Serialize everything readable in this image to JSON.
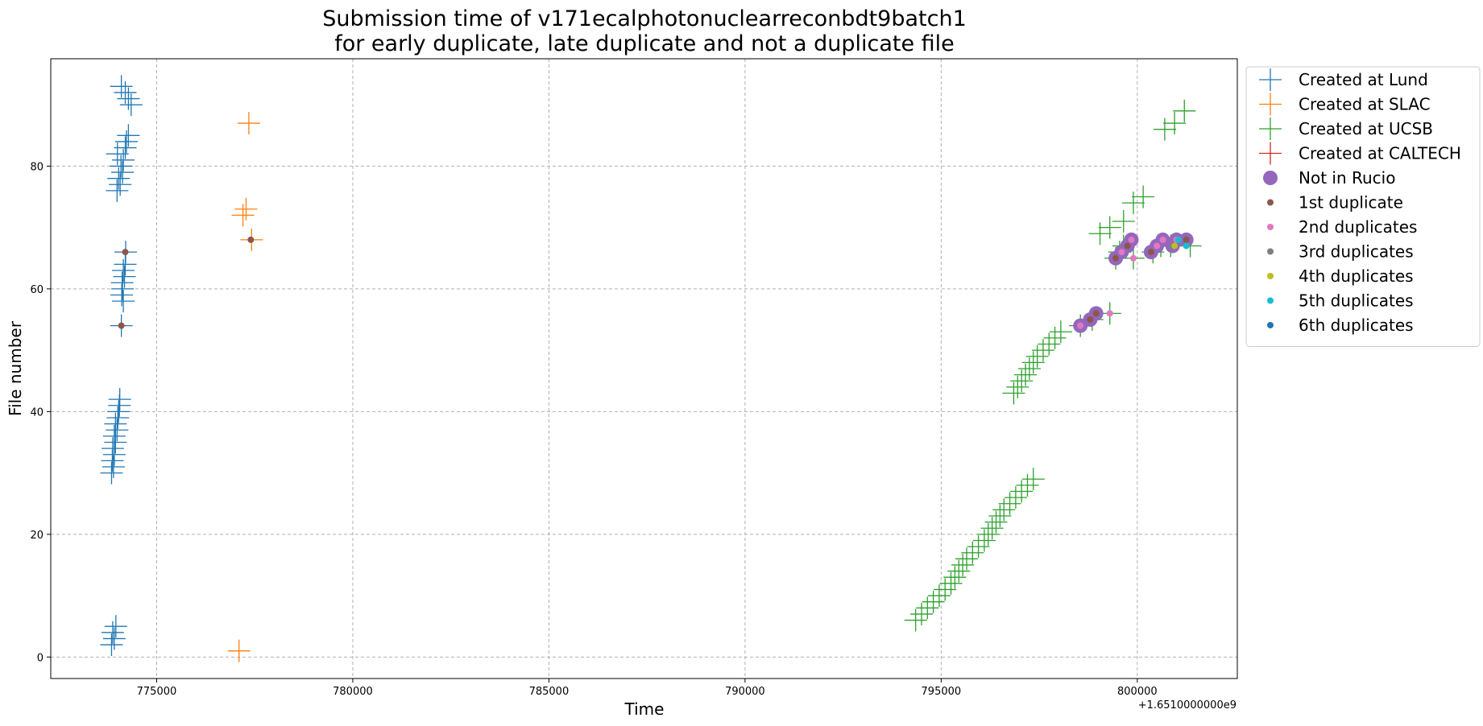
{
  "chart_data": {
    "type": "scatter",
    "title": [
      "Submission time of v171ecalphotonuclearreconbdt9batch1",
      "for early duplicate, late duplicate and not a duplicate file"
    ],
    "xlabel": "Time",
    "ylabel": "File number",
    "x_offset_label": "+1.6510000000e9",
    "xlim": [
      772300,
      802550
    ],
    "ylim": [
      -3.5,
      97.5
    ],
    "x_ticks": [
      775000,
      780000,
      785000,
      790000,
      795000,
      800000
    ],
    "y_ticks": [
      0,
      20,
      40,
      60,
      80
    ],
    "grid": true,
    "legend_position": "outside-top-right",
    "series": [
      {
        "name": "Created at Lund",
        "marker": "plus",
        "color": "#1f77b4",
        "points": [
          [
            773850,
            2
          ],
          [
            773920,
            3
          ],
          [
            773880,
            4
          ],
          [
            773960,
            5
          ],
          [
            773850,
            30
          ],
          [
            773900,
            31
          ],
          [
            773870,
            32
          ],
          [
            773920,
            33
          ],
          [
            773880,
            34
          ],
          [
            773950,
            35
          ],
          [
            773920,
            36
          ],
          [
            773990,
            37
          ],
          [
            773950,
            38
          ],
          [
            774010,
            39
          ],
          [
            774030,
            40
          ],
          [
            774050,
            41
          ],
          [
            774060,
            42
          ],
          [
            774100,
            54
          ],
          [
            774150,
            58
          ],
          [
            774110,
            59
          ],
          [
            774130,
            60
          ],
          [
            774120,
            61
          ],
          [
            774180,
            62
          ],
          [
            774150,
            63
          ],
          [
            774200,
            64
          ],
          [
            774210,
            66
          ],
          [
            773990,
            76
          ],
          [
            774070,
            77
          ],
          [
            774030,
            78
          ],
          [
            774130,
            79
          ],
          [
            774090,
            80
          ],
          [
            774150,
            81
          ],
          [
            774000,
            82
          ],
          [
            774200,
            83
          ],
          [
            774230,
            84
          ],
          [
            774280,
            85
          ],
          [
            774350,
            90
          ],
          [
            774280,
            91
          ],
          [
            774200,
            92
          ],
          [
            774100,
            93
          ]
        ]
      },
      {
        "name": "Created at SLAC",
        "marker": "plus",
        "color": "#ff7f0e",
        "points": [
          [
            777100,
            1
          ],
          [
            777420,
            68
          ],
          [
            777200,
            72
          ],
          [
            777280,
            73
          ],
          [
            777350,
            87
          ]
        ]
      },
      {
        "name": "Created at UCSB",
        "marker": "plus",
        "color": "#2ca02c",
        "points": [
          [
            794350,
            6
          ],
          [
            794500,
            7
          ],
          [
            794650,
            8
          ],
          [
            794800,
            9
          ],
          [
            794950,
            10
          ],
          [
            795100,
            11
          ],
          [
            795250,
            12
          ],
          [
            795350,
            13
          ],
          [
            795450,
            14
          ],
          [
            795550,
            15
          ],
          [
            795650,
            16
          ],
          [
            795800,
            17
          ],
          [
            795950,
            18
          ],
          [
            796100,
            19
          ],
          [
            796200,
            20
          ],
          [
            796300,
            21
          ],
          [
            796400,
            22
          ],
          [
            796500,
            23
          ],
          [
            796600,
            24
          ],
          [
            796750,
            25
          ],
          [
            796900,
            26
          ],
          [
            797050,
            27
          ],
          [
            797200,
            28
          ],
          [
            797350,
            29
          ],
          [
            796850,
            43
          ],
          [
            796950,
            44
          ],
          [
            797050,
            45
          ],
          [
            797150,
            46
          ],
          [
            797250,
            47
          ],
          [
            797350,
            48
          ],
          [
            797450,
            49
          ],
          [
            797600,
            50
          ],
          [
            797750,
            51
          ],
          [
            797900,
            52
          ],
          [
            798050,
            53
          ],
          [
            798550,
            54
          ],
          [
            798850,
            55
          ],
          [
            799300,
            56
          ],
          [
            799450,
            65
          ],
          [
            799550,
            66
          ],
          [
            799650,
            67
          ],
          [
            799900,
            65
          ],
          [
            800400,
            66
          ],
          [
            800600,
            67
          ],
          [
            800850,
            67
          ],
          [
            801350,
            67
          ],
          [
            799050,
            69
          ],
          [
            799300,
            70
          ],
          [
            799650,
            71
          ],
          [
            799900,
            74
          ],
          [
            800150,
            75
          ],
          [
            800700,
            86
          ],
          [
            800950,
            87
          ],
          [
            801200,
            89
          ]
        ]
      },
      {
        "name": "Created at CALTECH",
        "marker": "plus",
        "color": "#d62728",
        "points": []
      },
      {
        "name": "Not in Rucio",
        "marker": "circle-large",
        "color": "#9467bd",
        "points": [
          [
            798550,
            54
          ],
          [
            798800,
            55
          ],
          [
            798950,
            56
          ],
          [
            799450,
            65
          ],
          [
            799600,
            66
          ],
          [
            799750,
            67
          ],
          [
            799850,
            68
          ],
          [
            800350,
            66
          ],
          [
            800500,
            67
          ],
          [
            800650,
            68
          ],
          [
            800900,
            67
          ],
          [
            801000,
            68
          ],
          [
            801250,
            68
          ]
        ]
      },
      {
        "name": "1st duplicate",
        "marker": "dot",
        "color": "#8c564b",
        "points": [
          [
            774100,
            54
          ],
          [
            774200,
            66
          ],
          [
            777400,
            68
          ],
          [
            798800,
            55
          ],
          [
            798950,
            56
          ],
          [
            799450,
            65
          ],
          [
            799750,
            67
          ],
          [
            800350,
            66
          ],
          [
            801250,
            68
          ]
        ]
      },
      {
        "name": "2nd duplicates",
        "marker": "dot",
        "color": "#e377c2",
        "points": [
          [
            798550,
            54
          ],
          [
            799300,
            56
          ],
          [
            799600,
            66
          ],
          [
            799900,
            65
          ],
          [
            799850,
            68
          ],
          [
            800500,
            67
          ],
          [
            800650,
            68
          ],
          [
            801000,
            68
          ]
        ]
      },
      {
        "name": "3rd duplicates",
        "marker": "dot",
        "color": "#7f7f7f",
        "points": [
          [
            800900,
            67
          ]
        ]
      },
      {
        "name": "4th duplicates",
        "marker": "dot",
        "color": "#bcbd22",
        "points": [
          [
            800950,
            67
          ]
        ]
      },
      {
        "name": "5th duplicates",
        "marker": "dot",
        "color": "#17becf",
        "points": [
          [
            801050,
            68
          ],
          [
            801250,
            67
          ]
        ]
      },
      {
        "name": "6th duplicates",
        "marker": "dot",
        "color": "#1f77b4",
        "points": []
      }
    ]
  }
}
